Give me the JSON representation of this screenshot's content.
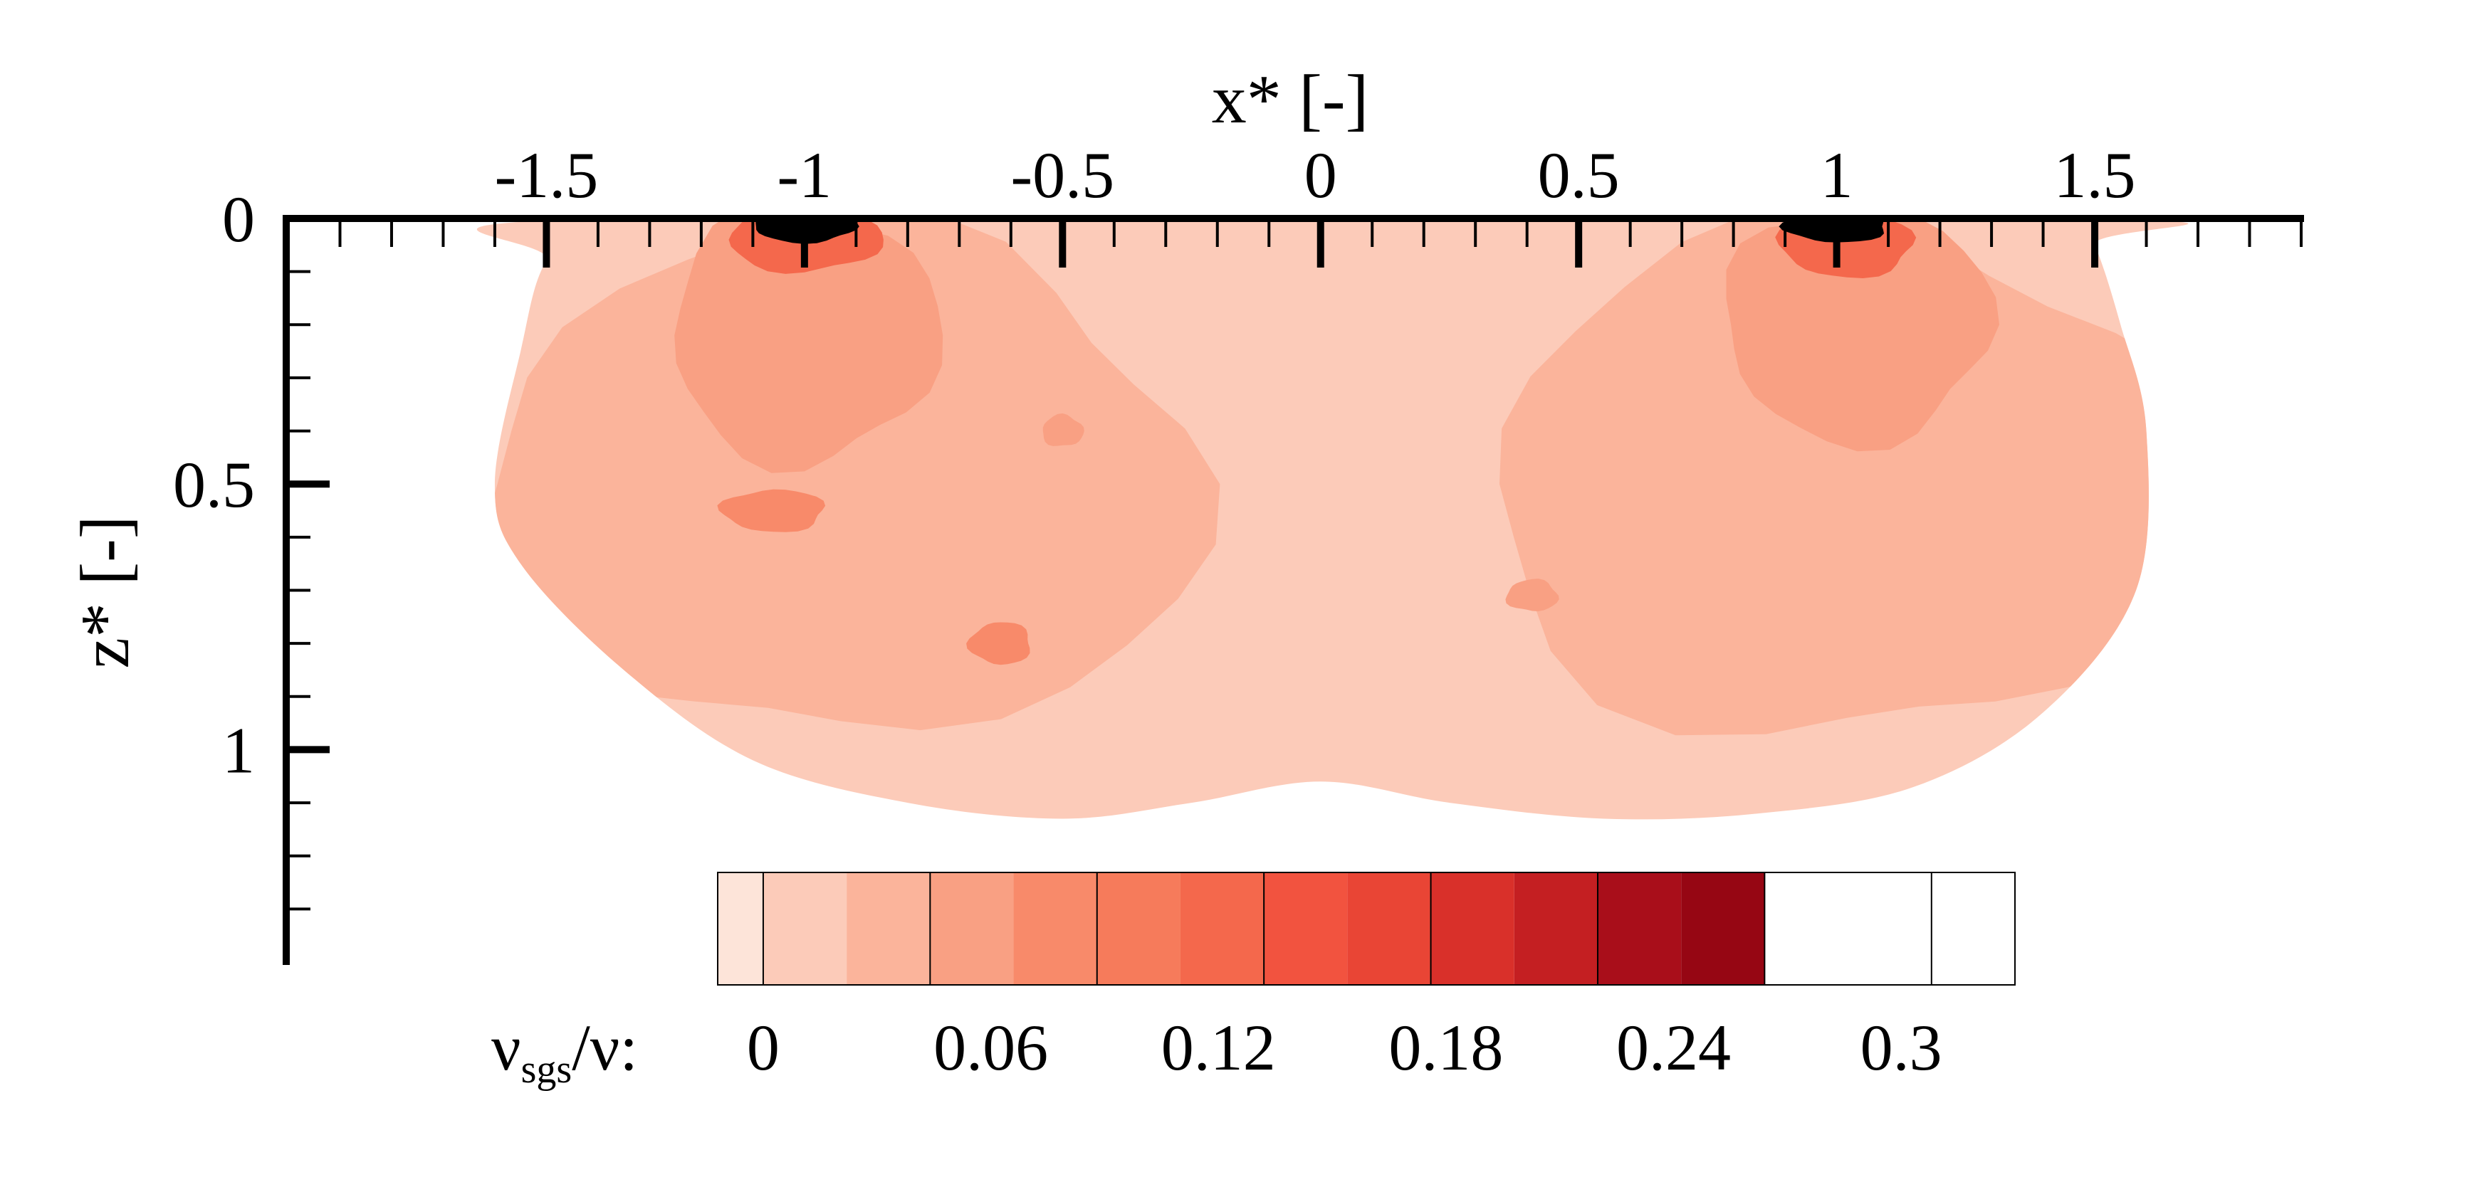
{
  "chart_data": {
    "type": "heatmap",
    "title": "",
    "xlabel": "x* [-]",
    "ylabel": "z* [-]",
    "xlim": [
      -2.0,
      1.9
    ],
    "ylim": [
      0,
      1.4
    ],
    "y_inverted": true,
    "x_axis_position": "top",
    "x_ticks": [
      {
        "value": -1.5,
        "label": "-1.5"
      },
      {
        "value": -1.0,
        "label": "-1"
      },
      {
        "value": -0.5,
        "label": "-0.5"
      },
      {
        "value": 0.0,
        "label": "0"
      },
      {
        "value": 0.5,
        "label": "0.5"
      },
      {
        "value": 1.0,
        "label": "1"
      },
      {
        "value": 1.5,
        "label": "1.5"
      }
    ],
    "y_ticks": [
      {
        "value": 0.0,
        "label": "0"
      },
      {
        "value": 0.5,
        "label": "0.5"
      },
      {
        "value": 1.0,
        "label": "1"
      }
    ],
    "grid": false,
    "colorbar": {
      "label_main": "ν",
      "label_sub": "sgs",
      "label_rest": "/ν:",
      "levels": [
        -0.012,
        0.0,
        0.022,
        0.044,
        0.066,
        0.088,
        0.11,
        0.132,
        0.154,
        0.176,
        0.198,
        0.22,
        0.242,
        0.264,
        0.286,
        0.308,
        0.33
      ],
      "colors": [
        "#fde4d9",
        "#fccbb9",
        "#fbb49b",
        "#f9a083",
        "#f88a6a",
        "#f67b5b",
        "#f4684c",
        "#f2533f",
        "#e94535",
        "#d9302a",
        "#c41f22",
        "#a90e1a",
        "#960613"
      ],
      "ticks": [
        {
          "value": 0.0,
          "label": "0"
        },
        {
          "value": 0.06,
          "label": "0.06"
        },
        {
          "value": 0.12,
          "label": "0.12"
        },
        {
          "value": 0.18,
          "label": "0.18"
        },
        {
          "value": 0.24,
          "label": "0.24"
        },
        {
          "value": 0.3,
          "label": "0.3"
        }
      ]
    },
    "field": {
      "domain_envelope": [
        [
          -1.39,
          0.0
        ],
        [
          -1.5,
          0.08
        ],
        [
          -1.55,
          0.25
        ],
        [
          -1.6,
          0.5
        ],
        [
          -1.55,
          0.65
        ],
        [
          -1.35,
          0.85
        ],
        [
          -1.1,
          1.02
        ],
        [
          -0.8,
          1.1
        ],
        [
          -0.5,
          1.13
        ],
        [
          -0.25,
          1.1
        ],
        [
          0.0,
          1.06
        ],
        [
          0.25,
          1.1
        ],
        [
          0.55,
          1.13
        ],
        [
          0.85,
          1.12
        ],
        [
          1.15,
          1.07
        ],
        [
          1.4,
          0.93
        ],
        [
          1.58,
          0.7
        ],
        [
          1.6,
          0.4
        ],
        [
          1.55,
          0.2
        ],
        [
          1.5,
          0.05
        ],
        [
          1.46,
          0.0
        ]
      ],
      "background_value": 0.01,
      "blobs": [
        {
          "x": -0.93,
          "z": 0.5,
          "rx": 0.7,
          "rz": 0.48,
          "value": 0.033
        },
        {
          "x": 1.02,
          "z": 0.5,
          "rx": 0.7,
          "rz": 0.48,
          "value": 0.033
        },
        {
          "x": -1.0,
          "z": 0.22,
          "rx": 0.26,
          "rz": 0.24,
          "value": 0.05
        },
        {
          "x": 1.04,
          "z": 0.2,
          "rx": 0.26,
          "rz": 0.22,
          "value": 0.05
        },
        {
          "x": -1.06,
          "z": 0.55,
          "rx": 0.1,
          "rz": 0.04,
          "value": 0.07
        },
        {
          "x": -0.62,
          "z": 0.8,
          "rx": 0.06,
          "rz": 0.04,
          "value": 0.07
        },
        {
          "x": 0.41,
          "z": 0.71,
          "rx": 0.05,
          "rz": 0.03,
          "value": 0.06
        },
        {
          "x": -0.5,
          "z": 0.4,
          "rx": 0.04,
          "rz": 0.03,
          "value": 0.06
        },
        {
          "x": -1.0,
          "z": 0.04,
          "rx": 0.15,
          "rz": 0.06,
          "value": 0.13
        },
        {
          "x": -1.0,
          "z": 0.015,
          "rx": 0.1,
          "rz": 0.03,
          "value": 0.27
        },
        {
          "x": 1.02,
          "z": 0.05,
          "rx": 0.13,
          "rz": 0.06,
          "value": 0.13
        },
        {
          "x": 1.0,
          "z": 0.015,
          "rx": 0.1,
          "rz": 0.03,
          "value": 0.27
        }
      ]
    }
  }
}
